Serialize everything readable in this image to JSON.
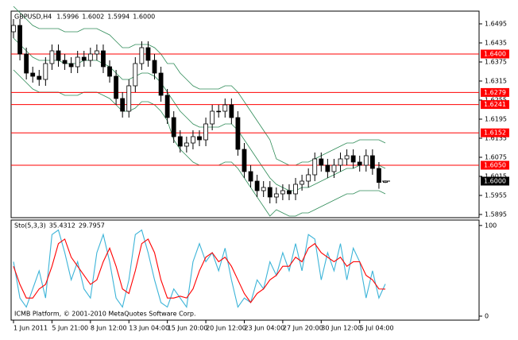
{
  "chart_data": [
    {
      "type": "candlestick",
      "title": "GBPUSD,H4",
      "ohlc_labels": [
        "1.5996",
        "1.6002",
        "1.5994",
        "1.6000"
      ],
      "categories": [
        "1 Jun 2011",
        null,
        null,
        null,
        null,
        null,
        "5 Jun 21:00",
        null,
        null,
        null,
        null,
        null,
        "8 Jun 12:00",
        null,
        null,
        null,
        null,
        null,
        "13 Jun 04:00",
        null,
        null,
        null,
        null,
        null,
        "15 Jun 20:00",
        null,
        null,
        null,
        null,
        null,
        "20 Jun 12:00",
        null,
        null,
        null,
        null,
        null,
        "23 Jun 04:00",
        null,
        null,
        null,
        null,
        null,
        "27 Jun 20:00",
        null,
        null,
        null,
        null,
        null,
        "30 Jun 12:00",
        null,
        null,
        null,
        null,
        null,
        "5 Jul 04:00",
        null,
        null,
        null,
        null
      ],
      "open": [
        1.647,
        1.649,
        1.64,
        1.634,
        1.633,
        1.632,
        1.637,
        1.641,
        1.638,
        1.637,
        1.636,
        1.639,
        1.638,
        1.64,
        1.641,
        1.636,
        1.633,
        1.626,
        1.622,
        1.63,
        1.637,
        1.642,
        1.638,
        1.634,
        1.627,
        1.62,
        1.614,
        1.611,
        1.612,
        1.614,
        1.613,
        1.618,
        1.622,
        1.622,
        1.624,
        1.62,
        1.61,
        1.603,
        1.6,
        1.597,
        1.598,
        1.595,
        1.596,
        1.597,
        1.596,
        1.599,
        1.6,
        1.602,
        1.607,
        1.605,
        1.603,
        1.605,
        1.607,
        1.608,
        1.606,
        1.605,
        1.608,
        1.604,
        1.5996
      ],
      "high": [
        1.651,
        1.651,
        1.642,
        1.636,
        1.635,
        1.639,
        1.643,
        1.643,
        1.64,
        1.639,
        1.641,
        1.641,
        1.642,
        1.643,
        1.643,
        1.638,
        1.635,
        1.628,
        1.632,
        1.639,
        1.644,
        1.644,
        1.64,
        1.636,
        1.629,
        1.622,
        1.616,
        1.614,
        1.616,
        1.616,
        1.62,
        1.624,
        1.624,
        1.626,
        1.626,
        1.622,
        1.612,
        1.605,
        1.602,
        1.6,
        1.6,
        1.598,
        1.599,
        1.599,
        1.601,
        1.602,
        1.604,
        1.609,
        1.609,
        1.607,
        1.607,
        1.609,
        1.61,
        1.61,
        1.608,
        1.61,
        1.61,
        1.606,
        1.6002
      ],
      "low": [
        1.645,
        1.638,
        1.632,
        1.631,
        1.63,
        1.63,
        1.635,
        1.636,
        1.635,
        1.634,
        1.634,
        1.636,
        1.636,
        1.638,
        1.634,
        1.631,
        1.624,
        1.62,
        1.62,
        1.628,
        1.635,
        1.636,
        1.632,
        1.625,
        1.618,
        1.612,
        1.609,
        1.609,
        1.61,
        1.611,
        1.611,
        1.616,
        1.62,
        1.62,
        1.618,
        1.608,
        1.601,
        1.598,
        1.595,
        1.595,
        1.593,
        1.593,
        1.594,
        1.594,
        1.594,
        1.597,
        1.598,
        1.6,
        1.603,
        1.601,
        1.601,
        1.603,
        1.605,
        1.604,
        1.603,
        1.603,
        1.602,
        1.5976,
        1.5994
      ],
      "close": [
        1.649,
        1.64,
        1.634,
        1.633,
        1.632,
        1.637,
        1.641,
        1.638,
        1.637,
        1.636,
        1.639,
        1.638,
        1.64,
        1.641,
        1.636,
        1.633,
        1.626,
        1.622,
        1.63,
        1.637,
        1.642,
        1.638,
        1.634,
        1.627,
        1.62,
        1.614,
        1.611,
        1.612,
        1.614,
        1.613,
        1.618,
        1.622,
        1.622,
        1.624,
        1.62,
        1.61,
        1.603,
        1.6,
        1.597,
        1.598,
        1.595,
        1.596,
        1.597,
        1.596,
        1.599,
        1.6,
        1.602,
        1.607,
        1.605,
        1.603,
        1.605,
        1.607,
        1.608,
        1.606,
        1.605,
        1.608,
        1.604,
        1.5996,
        1.6
      ],
      "bands": {
        "color": "#2e8b57",
        "upper": [
          1.655,
          1.653,
          1.651,
          1.649,
          1.648,
          1.648,
          1.648,
          1.648,
          1.647,
          1.647,
          1.647,
          1.648,
          1.648,
          1.648,
          1.647,
          1.646,
          1.644,
          1.642,
          1.642,
          1.643,
          1.643,
          1.643,
          1.642,
          1.64,
          1.637,
          1.637,
          1.634,
          1.632,
          1.63,
          1.629,
          1.629,
          1.629,
          1.629,
          1.63,
          1.63,
          1.628,
          1.625,
          1.622,
          1.619,
          1.616,
          1.613,
          1.607,
          1.606,
          1.605,
          1.605,
          1.606,
          1.606,
          1.607,
          1.608,
          1.609,
          1.61,
          1.611,
          1.612,
          1.612,
          1.613,
          1.613,
          1.613,
          1.613,
          1.612
        ],
        "middle": [
          1.645,
          1.643,
          1.641,
          1.639,
          1.638,
          1.638,
          1.638,
          1.638,
          1.637,
          1.637,
          1.637,
          1.638,
          1.638,
          1.638,
          1.637,
          1.636,
          1.634,
          1.632,
          1.632,
          1.633,
          1.634,
          1.634,
          1.633,
          1.631,
          1.628,
          1.625,
          1.622,
          1.62,
          1.618,
          1.617,
          1.617,
          1.617,
          1.617,
          1.618,
          1.618,
          1.616,
          1.613,
          1.61,
          1.607,
          1.604,
          1.601,
          1.599,
          1.598,
          1.597,
          1.597,
          1.598,
          1.598,
          1.599,
          1.6,
          1.601,
          1.602,
          1.603,
          1.604,
          1.604,
          1.605,
          1.605,
          1.605,
          1.605,
          1.604
        ],
        "lower": [
          1.635,
          1.633,
          1.631,
          1.629,
          1.628,
          1.628,
          1.628,
          1.628,
          1.627,
          1.627,
          1.627,
          1.628,
          1.628,
          1.628,
          1.627,
          1.626,
          1.624,
          1.622,
          1.622,
          1.623,
          1.625,
          1.625,
          1.624,
          1.622,
          1.619,
          1.613,
          1.61,
          1.608,
          1.606,
          1.605,
          1.605,
          1.605,
          1.605,
          1.606,
          1.606,
          1.604,
          1.601,
          1.598,
          1.595,
          1.592,
          1.589,
          1.591,
          1.59,
          1.589,
          1.589,
          1.59,
          1.59,
          1.591,
          1.592,
          1.593,
          1.594,
          1.595,
          1.596,
          1.596,
          1.597,
          1.597,
          1.597,
          1.597,
          1.596
        ]
      },
      "levels": [
        {
          "value": 1.64,
          "label": "1.6400"
        },
        {
          "value": 1.6279,
          "label": "1.6279"
        },
        {
          "value": 1.6241,
          "label": "1.6241"
        },
        {
          "value": 1.6152,
          "label": "1.6152"
        },
        {
          "value": 1.605,
          "label": "1.6050"
        }
      ],
      "level_color": "#ff0000",
      "current_price": {
        "value": 1.6,
        "label": "1.6000"
      },
      "ylim": [
        1.5885,
        1.6535
      ],
      "yticks": [
        1.6495,
        1.6435,
        1.6375,
        1.6315,
        1.6255,
        1.6195,
        1.6135,
        1.6075,
        1.6015,
        1.5955,
        1.5895
      ]
    },
    {
      "type": "line",
      "title": "Sto(5,3,3)",
      "footer": "ICMB Platform, © 2001-2010 MetaQuotes Software Corp.",
      "series": [
        {
          "color": "#3cb4d8",
          "values": [
            60,
            20,
            10,
            30,
            50,
            20,
            90,
            95,
            70,
            40,
            60,
            30,
            20,
            70,
            90,
            60,
            20,
            10,
            40,
            90,
            95,
            70,
            40,
            15,
            10,
            30,
            20,
            10,
            60,
            80,
            60,
            70,
            50,
            75,
            40,
            10,
            20,
            15,
            40,
            30,
            60,
            45,
            70,
            50,
            80,
            50,
            90,
            85,
            40,
            70,
            50,
            80,
            40,
            75,
            60,
            20,
            50,
            20,
            35.4312
          ]
        },
        {
          "color": "#ff0000",
          "values": [
            55,
            35,
            20,
            20,
            30,
            35,
            55,
            80,
            85,
            65,
            55,
            45,
            35,
            40,
            60,
            75,
            55,
            30,
            25,
            50,
            80,
            85,
            70,
            40,
            20,
            20,
            22,
            20,
            30,
            50,
            65,
            70,
            60,
            65,
            55,
            40,
            25,
            15,
            25,
            30,
            40,
            45,
            55,
            55,
            65,
            60,
            75,
            80,
            70,
            65,
            60,
            65,
            55,
            60,
            60,
            45,
            40,
            30,
            29.7957
          ]
        }
      ],
      "ylim": [
        -4.4,
        106
      ],
      "yticks": [
        100,
        0
      ]
    }
  ]
}
